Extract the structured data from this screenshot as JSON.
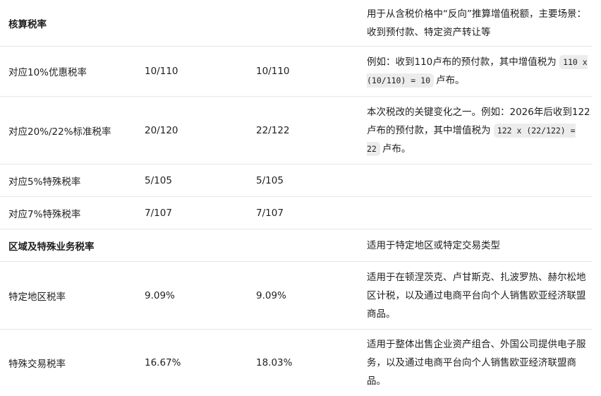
{
  "rows": [
    {
      "c1": "核算税率",
      "c2": "",
      "c3": "",
      "note": [
        {
          "t": "用于从含税价格中“反向”推算增值税额，主要场景：收到预付款、特定资产转让等"
        }
      ],
      "bold": true
    },
    {
      "c1": "对应10%优惠税率",
      "c2": "10/110",
      "c3": "10/110",
      "note": [
        {
          "t": "例如：收到110卢布的预付款，其中增值税为 "
        },
        {
          "code": "110 x (10/110) = 10"
        },
        {
          "t": "卢布。"
        }
      ]
    },
    {
      "c1": "对应20%/22%标准税率",
      "c2": "20/120",
      "c3": "22/122",
      "note": [
        {
          "t": "本次税改的关键变化之一。例如：2026年后收到122卢布的预付款，其中增值税为 "
        },
        {
          "code": "122 x (22/122) = 22"
        },
        {
          "t": "卢布。"
        }
      ]
    },
    {
      "c1": "对应5%特殊税率",
      "c2": "5/105",
      "c3": "5/105",
      "note": []
    },
    {
      "c1": "对应7%特殊税率",
      "c2": "7/107",
      "c3": "7/107",
      "note": []
    },
    {
      "c1": "区域及特殊业务税率",
      "c2": "",
      "c3": "",
      "note": [
        {
          "t": "适用于特定地区或特定交易类型"
        }
      ],
      "bold": true
    },
    {
      "c1": "特定地区税率",
      "c2": "9.09%",
      "c3": "9.09%",
      "note": [
        {
          "t": "适用于在顿涅茨克、卢甘斯克、扎波罗热、赫尔松地区计税，以及通过电商平台向个人销售欧亚经济联盟商品。"
        }
      ]
    },
    {
      "c1": "特殊交易税率",
      "c2": "16.67%",
      "c3": "18.03%",
      "note": [
        {
          "t": "适用于整体出售企业资产组合、外国公司提供电子服务，以及通过电商平台向个人销售欧亚经济联盟商品。"
        }
      ]
    }
  ]
}
